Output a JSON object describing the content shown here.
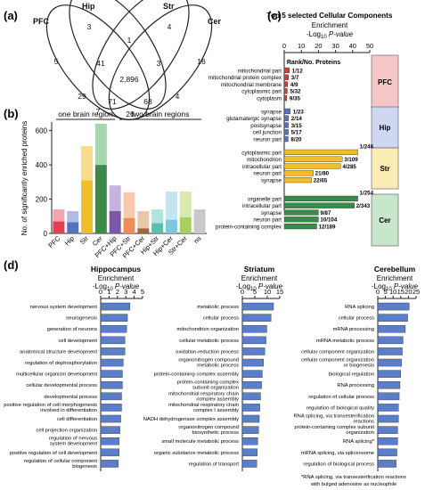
{
  "panels": {
    "a": "(a)",
    "b": "(b)",
    "c": "(c)",
    "d": "(d)"
  },
  "venn": {
    "set_labels": [
      "PFC",
      "Hip",
      "Str",
      "Cer"
    ],
    "colors": [
      "#333333",
      "#333333",
      "#333333",
      "#333333"
    ],
    "regions": [
      {
        "value": "3"
      },
      {
        "value": "1"
      },
      {
        "value": "5"
      },
      {
        "value": "41"
      },
      {
        "value": "3"
      },
      {
        "value": "4"
      },
      {
        "value": "16"
      },
      {
        "value": "2,896"
      },
      {
        "value": "29"
      },
      {
        "value": "4"
      },
      {
        "value": "71"
      },
      {
        "value": "68"
      },
      {
        "value": "26"
      },
      {
        "value": "7"
      }
    ]
  },
  "chart_data": [
    {
      "type": "bar",
      "panel": "b",
      "title": "",
      "ylabel": "No. of significantly enriched proteins",
      "ylim": [
        0,
        650
      ],
      "yticks": [
        0,
        200,
        400,
        600
      ],
      "group_labels": [
        "one brain region",
        "two brain regions"
      ],
      "categories": [
        "PFC",
        "Hip",
        "Str",
        "Cer",
        "PFC+Hip",
        "PFC+Str",
        "PFC+Cer",
        "Hip+Str",
        "Hip+Cer",
        "Str+Cer",
        "ns"
      ],
      "series": [
        {
          "values": [
            70,
            65,
            310,
            400,
            130,
            90,
            30,
            60,
            80,
            95,
            0
          ]
        },
        {
          "values": [
            70,
            65,
            200,
            240,
            150,
            150,
            100,
            80,
            165,
            150,
            140
          ]
        }
      ],
      "colors": [
        [
          "#e04055",
          "#f2a4b0"
        ],
        [
          "#5a70c0",
          "#aebce6"
        ],
        [
          "#f0be2a",
          "#f7dc8c"
        ],
        [
          "#3a8a48",
          "#a6d7ae"
        ],
        [
          "#7a5aa8",
          "#c7b2e0"
        ],
        [
          "#f08c5a",
          "#f8c9ad"
        ],
        [
          "#9a6a3e",
          "#e8c8aa"
        ],
        [
          "#58bfae",
          "#b2e4db"
        ],
        [
          "#7ec6dc",
          "#c3e5ef"
        ],
        [
          "#a8d060",
          "#d7ebb0"
        ],
        [
          "#a8a8a8",
          "#c8c8c8"
        ]
      ]
    },
    {
      "type": "bar",
      "panel": "c",
      "title": "Top 5 selected Cellular Components",
      "xlabel": "Enrichment",
      "xlabel2": "-Log",
      "xlabel2_sub": "10",
      "xlabel2_tail": " P-value",
      "xlim": [
        0,
        50
      ],
      "xticks": [
        0,
        10,
        20,
        30,
        40,
        50
      ],
      "rank_header": "Rank/No. Proteins",
      "groups": [
        {
          "name": "PFC",
          "color": "#d63b3b",
          "band": "#f6c6c6",
          "items": [
            {
              "label": "mitochondrial part",
              "value": 3.0,
              "rank": "1/12"
            },
            {
              "label": "mitochondrial protein complex",
              "value": 2.5,
              "rank": "3/7"
            },
            {
              "label": "mitochondrial membrane",
              "value": 2.0,
              "rank": "4/9"
            },
            {
              "label": "cytoplasmic part",
              "value": 1.8,
              "rank": "5/32"
            },
            {
              "label": "cytoplasm",
              "value": 1.5,
              "rank": "9/35"
            }
          ]
        },
        {
          "name": "Hip",
          "color": "#5a72c6",
          "band": "#cfd8f2",
          "items": [
            {
              "label": "synapse",
              "value": 3.5,
              "rank": "1/23"
            },
            {
              "label": "glutamatergic synapse",
              "value": 2.5,
              "rank": "2/14"
            },
            {
              "label": "postsynapse",
              "value": 2.4,
              "rank": "3/15"
            },
            {
              "label": "cell junction",
              "value": 2.4,
              "rank": "5/17"
            },
            {
              "label": "neuron part",
              "value": 2.3,
              "rank": "8/20"
            }
          ]
        },
        {
          "name": "Str",
          "color": "#f0be2a",
          "band": "#fbecb6",
          "items": [
            {
              "label": "cytoplasmic part",
              "value": 43,
              "rank": "1/246"
            },
            {
              "label": "mitochondrion",
              "value": 34,
              "rank": "3/109"
            },
            {
              "label": "intracellular part",
              "value": 33,
              "rank": "4/285"
            },
            {
              "label": "neuron part",
              "value": 17,
              "rank": "21/80"
            },
            {
              "label": "synapse",
              "value": 16,
              "rank": "22/65"
            }
          ]
        },
        {
          "name": "Cer",
          "color": "#3a8a48",
          "band": "#c7e6cc",
          "items": [
            {
              "label": "organelle part",
              "value": 43,
              "rank": "1/254"
            },
            {
              "label": "intracellular part",
              "value": 41,
              "rank": "2/343"
            },
            {
              "label": "synapse",
              "value": 20,
              "rank": "9/87"
            },
            {
              "label": "neuron part",
              "value": 20,
              "rank": "10/104"
            },
            {
              "label": "protein-containing complex",
              "value": 19,
              "rank": "12/189"
            }
          ]
        }
      ]
    },
    {
      "type": "bar",
      "panel": "d",
      "title": "Hippocampus",
      "xlabel": "Enrichment",
      "xlabel2": "-Log",
      "xlabel2_sub": "10",
      "xlabel2_tail": " P-value",
      "xlim": [
        0,
        5
      ],
      "xticks": [
        0,
        1,
        2,
        3,
        4,
        5
      ],
      "color": "#5a7fc8",
      "categories": [
        "nervous system development",
        "neurogenesis",
        "generation of neurons",
        "cell development",
        "anatomical structure development",
        "regulation of dephosphorylation",
        "multicellular organism development",
        "cellular developmental process",
        "developmental process",
        "positive regulation of cell morphogenesis|involved in differentiation",
        "cell differentiation",
        "cell projection organization",
        "regulation of nervous|system development",
        "positive regulation of cell development",
        "regulation of cellular component|biogenesis"
      ],
      "values": [
        3.5,
        3.2,
        3.1,
        2.9,
        2.9,
        2.7,
        2.6,
        2.6,
        2.5,
        2.5,
        2.4,
        2.3,
        2.2,
        2.2,
        2.1
      ]
    },
    {
      "type": "bar",
      "panel": "d",
      "title": "Striatum",
      "xlabel": "Enrichment",
      "xlabel2": "-Log",
      "xlabel2_sub": "10",
      "xlabel2_tail": " P-value",
      "xlim": [
        0,
        15
      ],
      "xticks": [
        0,
        5,
        10,
        15
      ],
      "color": "#5a7fc8",
      "categories": [
        "metabolic process",
        "cellular process",
        "mitochondrion organization",
        "cellular metabolic process",
        "oxidation-reduction process",
        "organonitrogen compound|metabolic process",
        "protein-containing complex assembly",
        "protein-containing complex|subunit organization",
        "mitochondrial respiratory chain|complex assembly",
        "mitochondrial respiratory chain|complex I assembly",
        "NADH dehydrogenase complex assembly",
        "organonitrogen compound|biosynthetic process",
        "small molecule metabolic process",
        "organic substance metabolic process",
        "regulation of transport"
      ],
      "values": [
        12.5,
        11.5,
        9.8,
        9.5,
        9.0,
        8.5,
        8.0,
        7.7,
        7.3,
        7.0,
        6.8,
        6.5,
        6.2,
        6.0,
        5.8
      ]
    },
    {
      "type": "bar",
      "panel": "d",
      "title": "Cerebellum",
      "xlabel": "Enrichment",
      "xlabel2": "-Log",
      "xlabel2_sub": "10",
      "xlabel2_tail": " P-value",
      "xlim": [
        0,
        25
      ],
      "xticks": [
        0,
        5,
        10,
        15,
        20,
        25
      ],
      "color": "#5a7fc8",
      "categories": [
        "RNA splicing",
        "cellular process",
        "mRNA processing",
        "mRNA metabolic process",
        "cellular component organization",
        "cellular component organization|or biogenesis",
        "biological regulation",
        "RNA processing",
        "regulation of cellular process",
        "regulation of biological quality",
        "RNA splicing, via transesterification|reactions",
        "protein-containing complex subunit|organization",
        "RNA splicing*",
        "mRNA splicing, via spliceosome",
        "regulation of biological process"
      ],
      "values": [
        20.5,
        19.5,
        18.0,
        16.5,
        16.0,
        15.5,
        15.0,
        14.5,
        14.0,
        13.5,
        13.5,
        13.0,
        13.0,
        12.5,
        12.0
      ]
    }
  ],
  "footnote": {
    "line1": "*RNA splicing, via transesterification reactions",
    "line2": "with bulged adenosine as nucleophile"
  }
}
